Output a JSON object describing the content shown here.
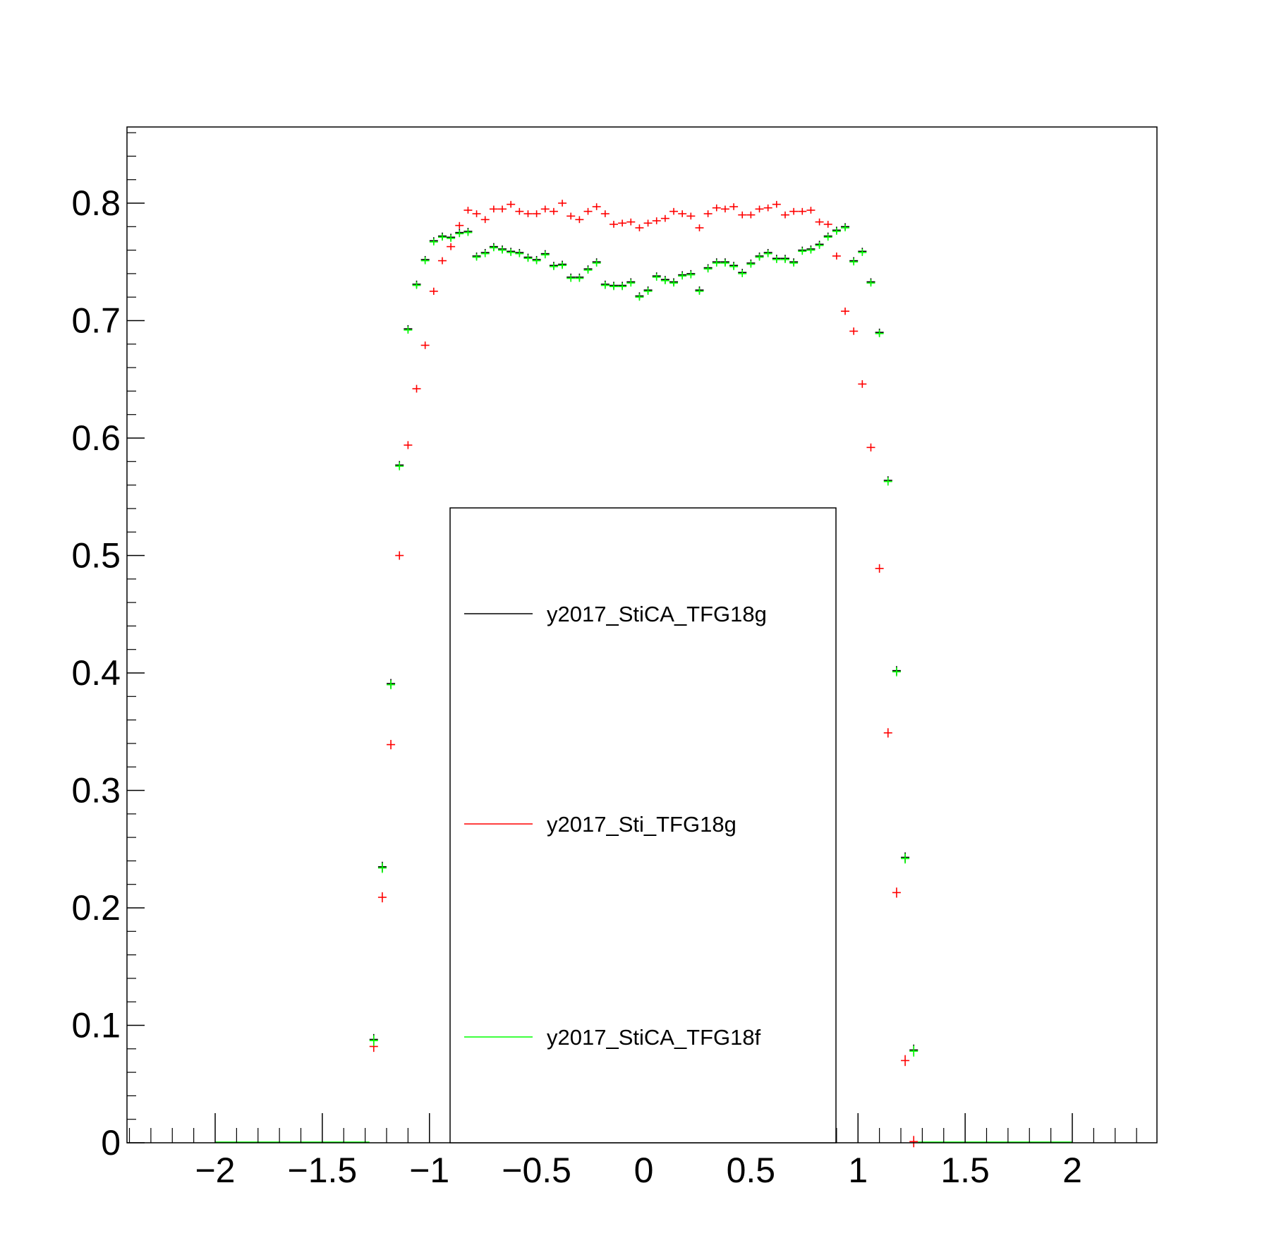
{
  "chart_data": {
    "type": "scatter",
    "title": "",
    "xlabel": "",
    "ylabel": "",
    "xlim": [
      -2.4,
      2.4
    ],
    "ylim": [
      0,
      0.86
    ],
    "grid": false,
    "legend_placement": "center-bottom",
    "x_ticks": [
      "−2",
      "−1.5",
      "−1",
      "−0.5",
      "0",
      "0.5",
      "1",
      "1.5",
      "2"
    ],
    "x_tick_values": [
      -2,
      -1.5,
      -1,
      -0.5,
      0,
      0.5,
      1,
      1.5,
      2
    ],
    "y_ticks": [
      "0",
      "0.1",
      "0.2",
      "0.3",
      "0.4",
      "0.5",
      "0.6",
      "0.7",
      "0.8"
    ],
    "y_tick_values": [
      0,
      0.1,
      0.2,
      0.3,
      0.4,
      0.5,
      0.6,
      0.7,
      0.8
    ],
    "series": [
      {
        "name": "y2017_StiCA_TFG18g",
        "color": "#000000",
        "x": [
          -1.26,
          -1.22,
          -1.18,
          -1.14,
          -1.1,
          -1.06,
          -1.02,
          -0.98,
          -0.94,
          -0.9,
          -0.86,
          -0.82,
          -0.78,
          -0.74,
          -0.7,
          -0.66,
          -0.62,
          -0.58,
          -0.54,
          -0.5,
          -0.46,
          -0.42,
          -0.38,
          -0.34,
          -0.3,
          -0.26,
          -0.22,
          -0.18,
          -0.14,
          -0.1,
          -0.06,
          -0.02,
          0.02,
          0.06,
          0.1,
          0.14,
          0.18,
          0.22,
          0.26,
          0.3,
          0.34,
          0.38,
          0.42,
          0.46,
          0.5,
          0.54,
          0.58,
          0.62,
          0.66,
          0.7,
          0.74,
          0.78,
          0.82,
          0.86,
          0.9,
          0.94,
          0.98,
          1.02,
          1.06,
          1.1,
          1.14,
          1.18,
          1.22,
          1.26
        ],
        "y": [
          0.088,
          0.235,
          0.391,
          0.577,
          0.693,
          0.731,
          0.752,
          0.768,
          0.772,
          0.771,
          0.775,
          0.776,
          0.755,
          0.758,
          0.763,
          0.761,
          0.759,
          0.758,
          0.754,
          0.752,
          0.757,
          0.747,
          0.748,
          0.737,
          0.737,
          0.744,
          0.75,
          0.731,
          0.73,
          0.73,
          0.733,
          0.721,
          0.726,
          0.738,
          0.735,
          0.733,
          0.739,
          0.74,
          0.726,
          0.745,
          0.75,
          0.75,
          0.747,
          0.741,
          0.749,
          0.755,
          0.758,
          0.753,
          0.753,
          0.75,
          0.76,
          0.761,
          0.765,
          0.772,
          0.777,
          0.78,
          0.751,
          0.759,
          0.733,
          0.69,
          0.564,
          0.402,
          0.243,
          0.079
        ]
      },
      {
        "name": "y2017_Sti_TFG18g",
        "color": "#ff0000",
        "x": [
          -1.26,
          -1.22,
          -1.18,
          -1.14,
          -1.1,
          -1.06,
          -1.02,
          -0.98,
          -0.94,
          -0.9,
          -0.86,
          -0.82,
          -0.78,
          -0.74,
          -0.7,
          -0.66,
          -0.62,
          -0.58,
          -0.54,
          -0.5,
          -0.46,
          -0.42,
          -0.38,
          -0.34,
          -0.3,
          -0.26,
          -0.22,
          -0.18,
          -0.14,
          -0.1,
          -0.06,
          -0.02,
          0.02,
          0.06,
          0.1,
          0.14,
          0.18,
          0.22,
          0.26,
          0.3,
          0.34,
          0.38,
          0.42,
          0.46,
          0.5,
          0.54,
          0.58,
          0.62,
          0.66,
          0.7,
          0.74,
          0.78,
          0.82,
          0.86,
          0.9,
          0.94,
          0.98,
          1.02,
          1.06,
          1.1,
          1.14,
          1.18,
          1.22,
          1.26
        ],
        "y": [
          0.082,
          0.209,
          0.339,
          0.5,
          0.594,
          0.642,
          0.679,
          0.725,
          0.751,
          0.763,
          0.781,
          0.794,
          0.791,
          0.786,
          0.795,
          0.795,
          0.799,
          0.793,
          0.791,
          0.791,
          0.795,
          0.793,
          0.8,
          0.789,
          0.786,
          0.793,
          0.797,
          0.791,
          0.782,
          0.783,
          0.784,
          0.779,
          0.783,
          0.785,
          0.787,
          0.793,
          0.791,
          0.789,
          0.779,
          0.791,
          0.796,
          0.795,
          0.797,
          0.79,
          0.79,
          0.795,
          0.796,
          0.799,
          0.79,
          0.793,
          0.793,
          0.794,
          0.784,
          0.782,
          0.755,
          0.708,
          0.691,
          0.646,
          0.592,
          0.489,
          0.349,
          0.213,
          0.07,
          0.001
        ]
      },
      {
        "name": "y2017_StiCA_TFG18f",
        "color": "#00ff00",
        "x": [
          -1.26,
          -1.22,
          -1.18,
          -1.14,
          -1.1,
          -1.06,
          -1.02,
          -0.98,
          -0.94,
          -0.9,
          -0.86,
          -0.82,
          -0.78,
          -0.74,
          -0.7,
          -0.66,
          -0.62,
          -0.58,
          -0.54,
          -0.5,
          -0.46,
          -0.42,
          -0.38,
          -0.34,
          -0.3,
          -0.26,
          -0.22,
          -0.18,
          -0.14,
          -0.1,
          -0.06,
          -0.02,
          0.02,
          0.06,
          0.1,
          0.14,
          0.18,
          0.22,
          0.26,
          0.3,
          0.34,
          0.38,
          0.42,
          0.46,
          0.5,
          0.54,
          0.58,
          0.62,
          0.66,
          0.7,
          0.74,
          0.78,
          0.82,
          0.86,
          0.9,
          0.94,
          0.98,
          1.02,
          1.06,
          1.1,
          1.14,
          1.18,
          1.22,
          1.26
        ],
        "y": [
          0.087,
          0.234,
          0.39,
          0.576,
          0.692,
          0.73,
          0.751,
          0.767,
          0.771,
          0.77,
          0.774,
          0.775,
          0.754,
          0.757,
          0.762,
          0.76,
          0.758,
          0.757,
          0.753,
          0.751,
          0.756,
          0.746,
          0.747,
          0.736,
          0.736,
          0.743,
          0.749,
          0.73,
          0.729,
          0.729,
          0.732,
          0.72,
          0.725,
          0.737,
          0.734,
          0.732,
          0.738,
          0.739,
          0.725,
          0.744,
          0.749,
          0.749,
          0.746,
          0.74,
          0.748,
          0.754,
          0.757,
          0.752,
          0.752,
          0.749,
          0.759,
          0.76,
          0.764,
          0.771,
          0.776,
          0.779,
          0.75,
          0.758,
          0.732,
          0.689,
          0.563,
          0.401,
          0.242,
          0.078
        ]
      }
    ]
  }
}
